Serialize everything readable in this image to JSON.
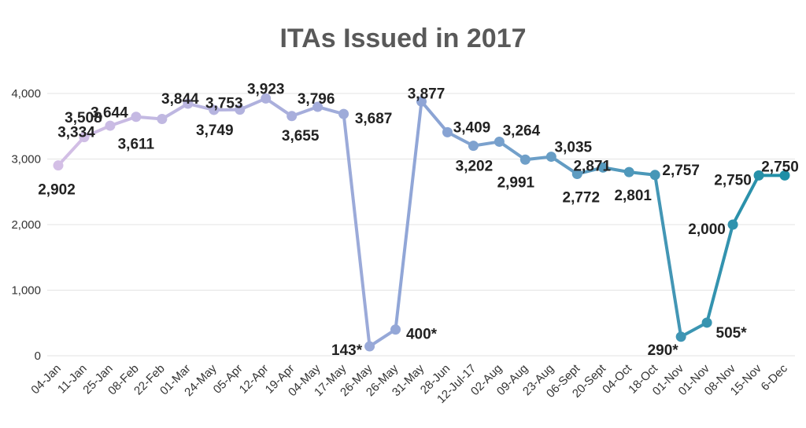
{
  "chart_data": {
    "type": "line",
    "title": "ITAs Issued in 2017",
    "xlabel": "",
    "ylabel": "",
    "ylim": [
      0,
      4000
    ],
    "yticks": [
      0,
      1000,
      2000,
      3000,
      4000
    ],
    "ytick_labels": [
      "0",
      "1,000",
      "2,000",
      "3,000",
      "4,000"
    ],
    "grid": true,
    "legend": "none",
    "categories": [
      "04-Jan",
      "11-Jan",
      "25-Jan",
      "08-Feb",
      "22-Feb",
      "01-Mar",
      "24-May",
      "05-Apr",
      "12-Apr",
      "19-Apr",
      "04-May",
      "17-May",
      "26-May",
      "26-May",
      "31-May",
      "28-Jun",
      "12-Jul-17",
      "02-Aug",
      "09-Aug",
      "23-Aug",
      "06-Sept",
      "20-Sept",
      "04-Oct",
      "18-Oct",
      "01-Nov",
      "01-Nov",
      "08-Nov",
      "15-Nov",
      "6-Dec"
    ],
    "values": [
      2902,
      3334,
      3508,
      3644,
      3611,
      3844,
      3749,
      3753,
      3923,
      3655,
      3796,
      3687,
      143,
      400,
      3877,
      3409,
      3202,
      3264,
      2991,
      3035,
      2772,
      2871,
      2801,
      2757,
      290,
      505,
      2000,
      2750,
      2750
    ],
    "data_labels": [
      "2,902",
      "3,334",
      "3,508",
      "3,644",
      "3,611",
      "3,844",
      "3,749",
      "3,753",
      "3,923",
      "3,655",
      "3,796",
      "3,687",
      "143*",
      "400*",
      "3,877",
      "3,409",
      "3,202",
      "3,264",
      "2,991",
      "3,035",
      "2,772",
      "2,871",
      "2,801",
      "2,757",
      "290*",
      "505*",
      "2,000",
      "2,750",
      "2,750"
    ],
    "colors": {
      "start": "#d4bfe6",
      "mid": "#8fa5d6",
      "end": "#1f8fa6",
      "title": "#595959",
      "grid": "#e3e3e3"
    }
  }
}
